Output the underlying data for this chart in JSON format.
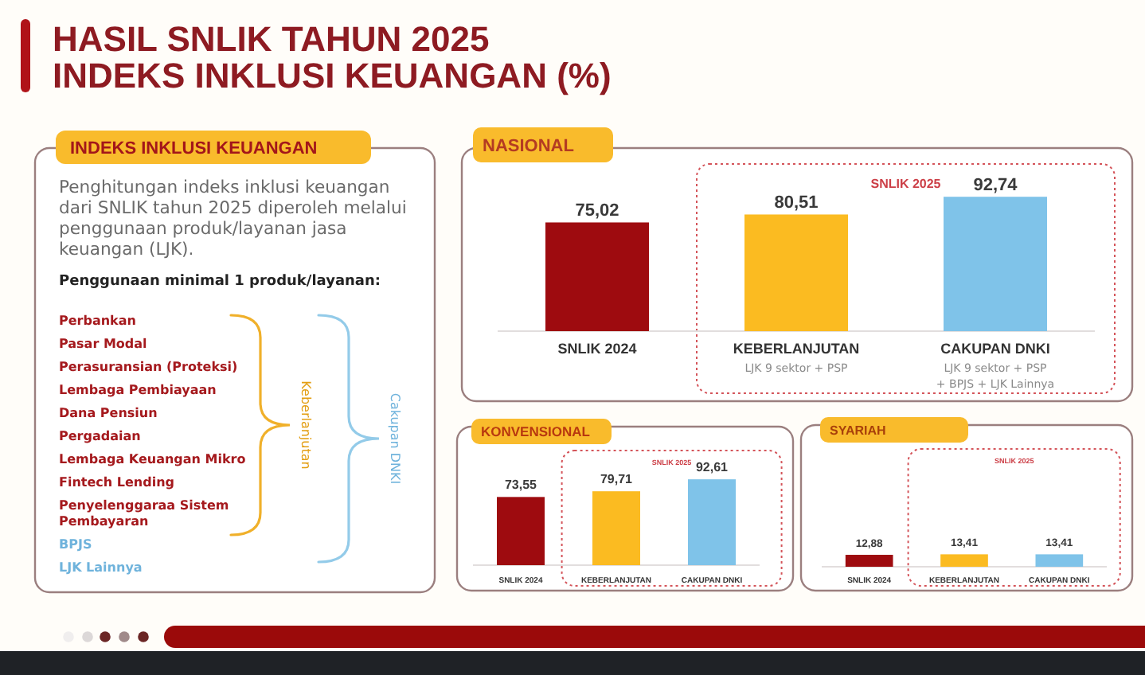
{
  "chart_data": [
    {
      "type": "other",
      "title": "HASIL SNLIK TAHUN 2025",
      "subtitle": "INDEKS INKLUSI KEUANGAN (%)"
    },
    {
      "type": "other",
      "title": "INDEKS INKLUSI KEUANGAN",
      "subtitle": "Penghitungan indeks inklusi keuangan dari SNLIK tahun 2025 diperoleh melalui penggunaan produk/layanan jasa keuangan (LJK).",
      "annotations": [
        "Penggunaan minimal 1 produk/layanan:",
        "Perbankan",
        "Pasar Modal",
        "Perasuransian (Proteksi)",
        "Lembaga Pembiayaan",
        "Dana Pensiun",
        "Pergadaian",
        "Lembaga Keuangan Mikro",
        "Fintech Lending",
        "Penyelenggaraa Sistem Pembayaran",
        "BPJS",
        "LJK Lainnya",
        "Keberlanjutan",
        "Cakupan DNKI"
      ]
    },
    {
      "type": "bar",
      "title": "NASIONAL",
      "categories": [
        "SNLIK 2024",
        "KEBERLANJUTAN",
        "CAKUPAN DNKI"
      ],
      "values": [
        75.02,
        80.51,
        92.74
      ],
      "colors": [
        "#9e0b0f",
        "#fbbb21",
        "#7fc3e9"
      ],
      "value_labels": [
        "75,02",
        "80,51",
        "92,74"
      ],
      "annotations": [
        "SNLIK 2025",
        "LJK 9 sektor + PSP",
        "LJK 9 sektor + PSP + BPJS + LJK Lainnya"
      ]
    },
    {
      "type": "bar",
      "title": "KONVENSIONAL",
      "categories": [
        "SNLIK 2024",
        "KEBERLANJUTAN",
        "CAKUPAN DNKI"
      ],
      "values": [
        73.55,
        79.71,
        92.61
      ],
      "colors": [
        "#9e0b0f",
        "#fbbb21",
        "#7fc3e9"
      ],
      "value_labels": [
        "73,55",
        "79,71",
        "92,61"
      ],
      "annotations": [
        "SNLIK 2025"
      ]
    },
    {
      "type": "bar",
      "title": "SYARIAH",
      "categories": [
        "SNLIK 2024",
        "KEBERLANJUTAN",
        "CAKUPAN DNKI"
      ],
      "values": [
        12.88,
        13.41,
        13.41
      ],
      "colors": [
        "#9e0b0f",
        "#fbbb21",
        "#7fc3e9"
      ],
      "value_labels": [
        "12,88",
        "13,41",
        "13,41"
      ],
      "annotations": [
        "SNLIK 2025"
      ]
    }
  ]
}
